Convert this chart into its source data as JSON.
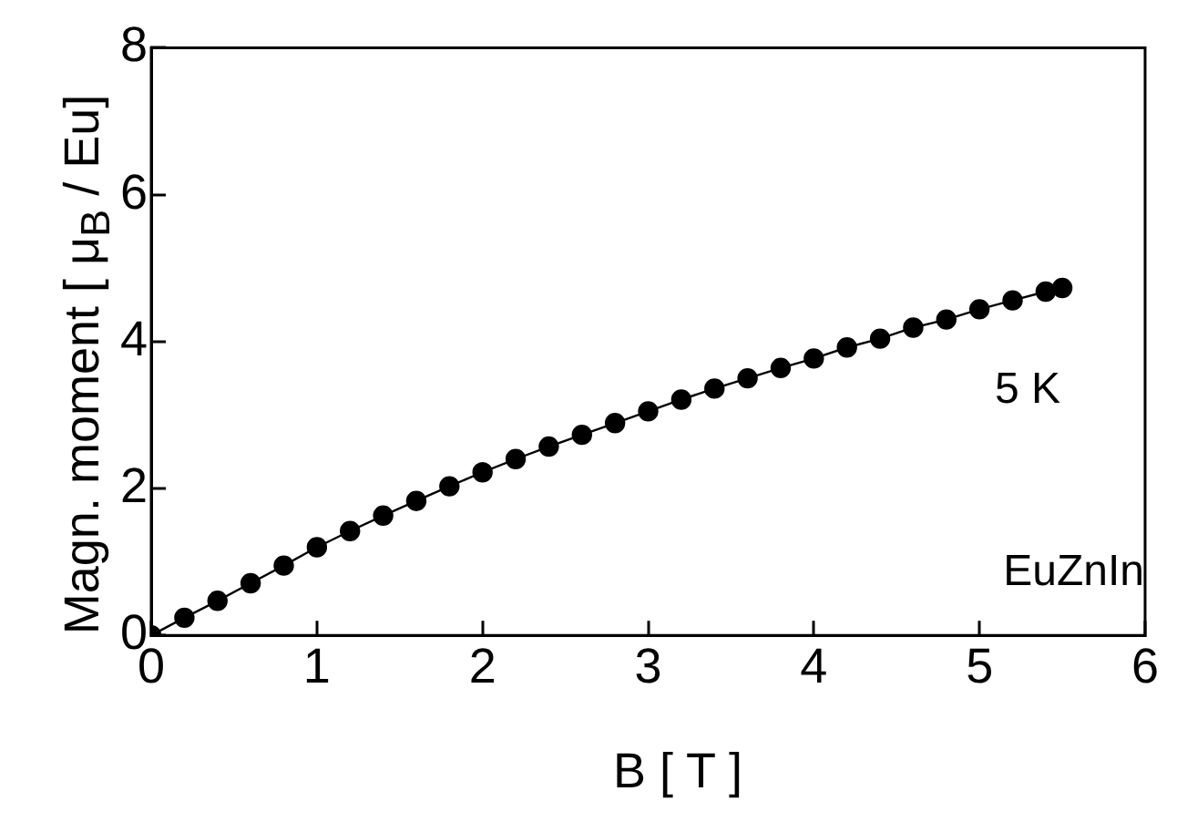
{
  "chart_data": {
    "type": "line",
    "xlabel": "B [ T ]",
    "ylabel": "Magn. moment [ μ$_{B}$ / Eu]",
    "x": [
      0,
      0.2,
      0.4,
      0.6,
      0.8,
      1.0,
      1.2,
      1.4,
      1.6,
      1.8,
      2.0,
      2.2,
      2.4,
      2.6,
      2.8,
      3.0,
      3.2,
      3.4,
      3.6,
      3.8,
      4.0,
      4.2,
      4.4,
      4.6,
      4.8,
      5.0,
      5.2,
      5.4,
      5.5
    ],
    "series": [
      {
        "color": "#000000",
        "values": [
          0,
          0.24,
          0.47,
          0.71,
          0.95,
          1.2,
          1.42,
          1.63,
          1.83,
          2.03,
          2.22,
          2.4,
          2.57,
          2.73,
          2.89,
          3.05,
          3.21,
          3.36,
          3.5,
          3.64,
          3.77,
          3.92,
          4.04,
          4.19,
          4.3,
          4.44,
          4.56,
          4.68,
          4.73
        ]
      }
    ],
    "xlim": [
      0,
      6
    ],
    "xticks": [
      0,
      1,
      2,
      3,
      4,
      5,
      6
    ],
    "ylim": [
      0,
      8
    ],
    "yticks": [
      0,
      2,
      4,
      6,
      8
    ],
    "annotations": [
      "5 K",
      "EuZnIn"
    ],
    "grid": false,
    "legend": false,
    "marker": "circle",
    "line_style": "solid"
  }
}
